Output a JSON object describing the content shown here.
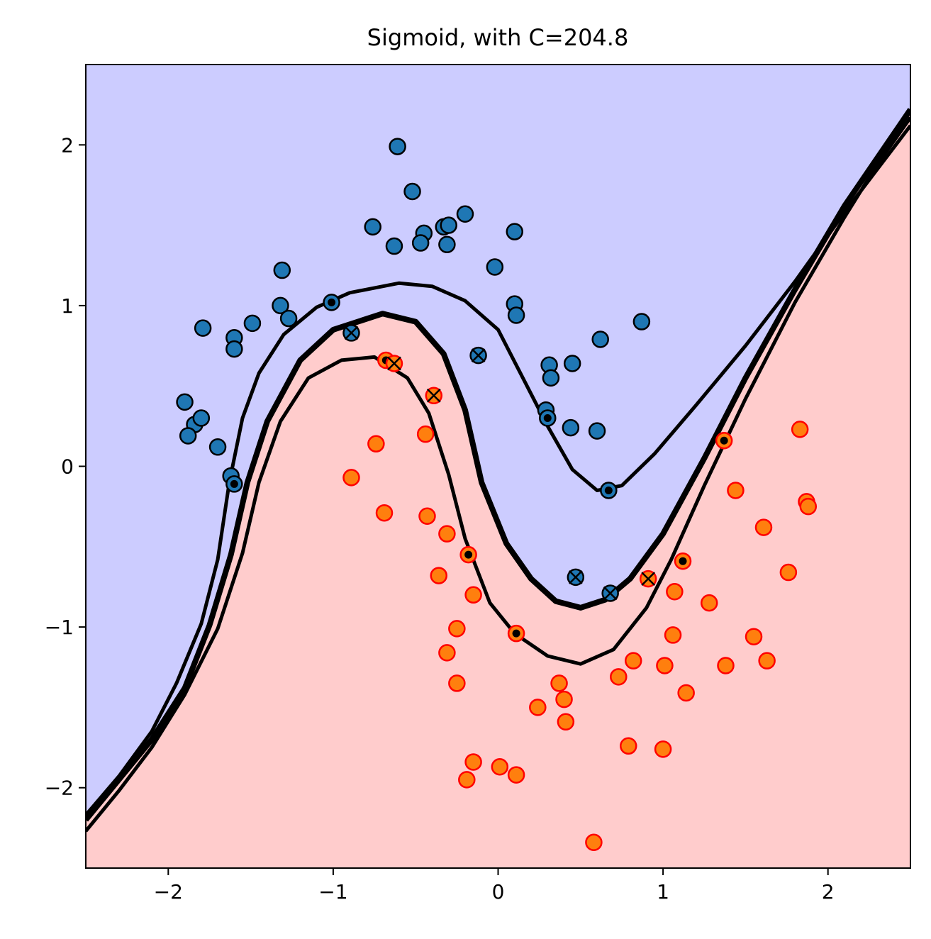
{
  "chart_data": {
    "type": "scatter",
    "title": "Sigmoid, with C=204.8",
    "xlabel": "",
    "ylabel": "",
    "xlim": [
      -2.5,
      2.5
    ],
    "ylim": [
      -2.5,
      2.5
    ],
    "xticks": [
      -2,
      -1,
      0,
      1,
      2
    ],
    "yticks": [
      -2,
      -1,
      0,
      1,
      2
    ],
    "xtick_labels": [
      "−2",
      "−1",
      "0",
      "1",
      "2"
    ],
    "ytick_labels": [
      "−2",
      "−1",
      "0",
      "1",
      "2"
    ],
    "grid": false,
    "colors": {
      "region_class0": "#ccccff",
      "region_class1": "#ffcccc",
      "class0_fill": "#1f77b4",
      "class0_edge": "#000000",
      "class1_fill": "#ff7f0e",
      "class1_edge": "#ff0000",
      "boundary": "#000000"
    },
    "series": [
      {
        "values": [
          [
            -0.61,
            1.99
          ],
          [
            -0.52,
            1.71
          ],
          [
            -0.76,
            1.49
          ],
          [
            -0.45,
            1.45
          ],
          [
            -0.33,
            1.49
          ],
          [
            -0.3,
            1.5
          ],
          [
            -0.2,
            1.57
          ],
          [
            -0.63,
            1.37
          ],
          [
            -0.47,
            1.39
          ],
          [
            -0.31,
            1.38
          ],
          [
            0.1,
            1.46
          ],
          [
            -0.02,
            1.24
          ],
          [
            -1.31,
            1.22
          ],
          [
            -1.01,
            1.02
          ],
          [
            -1.32,
            1.0
          ],
          [
            -1.27,
            0.92
          ],
          [
            -1.49,
            0.89
          ],
          [
            -1.79,
            0.86
          ],
          [
            -1.6,
            0.8
          ],
          [
            -1.6,
            0.73
          ],
          [
            0.1,
            1.01
          ],
          [
            0.11,
            0.94
          ],
          [
            -0.89,
            0.83
          ],
          [
            -0.12,
            0.69
          ],
          [
            0.62,
            0.79
          ],
          [
            0.87,
            0.9
          ],
          [
            0.31,
            0.63
          ],
          [
            0.32,
            0.55
          ],
          [
            0.45,
            0.64
          ],
          [
            -1.9,
            0.4
          ],
          [
            -1.84,
            0.26
          ],
          [
            -1.8,
            0.3
          ],
          [
            -1.88,
            0.19
          ],
          [
            -1.7,
            0.12
          ],
          [
            0.29,
            0.35
          ],
          [
            0.3,
            0.3
          ],
          [
            0.44,
            0.24
          ],
          [
            0.6,
            0.22
          ],
          [
            -1.62,
            -0.06
          ],
          [
            -1.6,
            -0.11
          ],
          [
            0.67,
            -0.15
          ],
          [
            0.47,
            -0.69
          ],
          [
            0.68,
            -0.79
          ]
        ],
        "support_vectors": [
          [
            -1.01,
            1.02
          ],
          [
            -1.6,
            -0.11
          ],
          [
            0.3,
            0.3
          ],
          [
            0.67,
            -0.15
          ]
        ],
        "misclassified": [
          [
            -0.89,
            0.83
          ],
          [
            -0.12,
            0.69
          ],
          [
            0.47,
            -0.69
          ],
          [
            0.68,
            -0.79
          ]
        ]
      },
      {
        "values": [
          [
            -0.68,
            0.66
          ],
          [
            -0.63,
            0.64
          ],
          [
            -0.39,
            0.44
          ],
          [
            -0.44,
            0.2
          ],
          [
            -0.74,
            0.14
          ],
          [
            -0.89,
            -0.07
          ],
          [
            -0.69,
            -0.29
          ],
          [
            -0.43,
            -0.31
          ],
          [
            -0.31,
            -0.42
          ],
          [
            -0.18,
            -0.55
          ],
          [
            -0.36,
            -0.68
          ],
          [
            -0.15,
            -0.8
          ],
          [
            -0.25,
            -1.01
          ],
          [
            -0.31,
            -1.16
          ],
          [
            -0.25,
            -1.35
          ],
          [
            0.11,
            -1.04
          ],
          [
            1.37,
            0.16
          ],
          [
            1.83,
            0.23
          ],
          [
            1.44,
            -0.15
          ],
          [
            1.87,
            -0.22
          ],
          [
            1.88,
            -0.25
          ],
          [
            1.61,
            -0.38
          ],
          [
            1.76,
            -0.66
          ],
          [
            1.12,
            -0.59
          ],
          [
            0.91,
            -0.7
          ],
          [
            1.07,
            -0.78
          ],
          [
            1.28,
            -0.85
          ],
          [
            1.06,
            -1.05
          ],
          [
            1.55,
            -1.06
          ],
          [
            1.63,
            -1.21
          ],
          [
            1.38,
            -1.24
          ],
          [
            1.01,
            -1.24
          ],
          [
            0.82,
            -1.21
          ],
          [
            0.73,
            -1.31
          ],
          [
            1.14,
            -1.41
          ],
          [
            0.37,
            -1.35
          ],
          [
            0.4,
            -1.45
          ],
          [
            0.24,
            -1.5
          ],
          [
            0.41,
            -1.59
          ],
          [
            0.79,
            -1.74
          ],
          [
            1.0,
            -1.76
          ],
          [
            -0.15,
            -1.84
          ],
          [
            0.01,
            -1.87
          ],
          [
            0.11,
            -1.92
          ],
          [
            -0.19,
            -1.95
          ],
          [
            0.58,
            -2.34
          ]
        ],
        "support_vectors": [
          [
            -0.68,
            0.66
          ],
          [
            -0.18,
            -0.55
          ],
          [
            0.11,
            -1.04
          ],
          [
            1.12,
            -0.59
          ],
          [
            1.37,
            0.16
          ]
        ],
        "misclassified": [
          [
            -0.63,
            0.64
          ],
          [
            -0.39,
            0.44
          ],
          [
            0.91,
            -0.7
          ]
        ]
      }
    ],
    "boundary_lines": [
      {
        "role": "margin-upper",
        "points": [
          [
            -2.5,
            -2.17
          ],
          [
            -2.3,
            -1.93
          ],
          [
            -2.1,
            -1.65
          ],
          [
            -1.95,
            -1.35
          ],
          [
            -1.8,
            -0.98
          ],
          [
            -1.7,
            -0.58
          ],
          [
            -1.63,
            -0.1
          ],
          [
            -1.55,
            0.3
          ],
          [
            -1.45,
            0.58
          ],
          [
            -1.3,
            0.82
          ],
          [
            -1.1,
            0.99
          ],
          [
            -0.9,
            1.08
          ],
          [
            -0.6,
            1.14
          ],
          [
            -0.4,
            1.12
          ],
          [
            -0.2,
            1.03
          ],
          [
            0.0,
            0.85
          ],
          [
            0.15,
            0.55
          ],
          [
            0.3,
            0.25
          ],
          [
            0.45,
            -0.02
          ],
          [
            0.6,
            -0.15
          ],
          [
            0.75,
            -0.12
          ],
          [
            0.95,
            0.08
          ],
          [
            1.2,
            0.38
          ],
          [
            1.5,
            0.75
          ],
          [
            1.8,
            1.15
          ],
          [
            2.1,
            1.58
          ],
          [
            2.3,
            1.85
          ],
          [
            2.5,
            2.12
          ]
        ]
      },
      {
        "role": "decision-boundary",
        "points": [
          [
            -2.5,
            -2.2
          ],
          [
            -2.3,
            -1.95
          ],
          [
            -2.1,
            -1.7
          ],
          [
            -1.9,
            -1.38
          ],
          [
            -1.75,
            -0.99
          ],
          [
            -1.62,
            -0.55
          ],
          [
            -1.52,
            -0.1
          ],
          [
            -1.4,
            0.28
          ],
          [
            -1.2,
            0.66
          ],
          [
            -1.0,
            0.85
          ],
          [
            -0.7,
            0.95
          ],
          [
            -0.5,
            0.9
          ],
          [
            -0.33,
            0.7
          ],
          [
            -0.2,
            0.35
          ],
          [
            -0.1,
            -0.1
          ],
          [
            0.05,
            -0.48
          ],
          [
            0.2,
            -0.7
          ],
          [
            0.35,
            -0.84
          ],
          [
            0.5,
            -0.88
          ],
          [
            0.65,
            -0.83
          ],
          [
            0.8,
            -0.7
          ],
          [
            1.0,
            -0.42
          ],
          [
            1.25,
            0.05
          ],
          [
            1.5,
            0.55
          ],
          [
            1.8,
            1.1
          ],
          [
            2.1,
            1.62
          ],
          [
            2.3,
            1.92
          ],
          [
            2.5,
            2.22
          ]
        ]
      },
      {
        "role": "margin-lower",
        "points": [
          [
            -2.5,
            -2.27
          ],
          [
            -2.3,
            -2.02
          ],
          [
            -2.1,
            -1.75
          ],
          [
            -1.9,
            -1.42
          ],
          [
            -1.7,
            -1.01
          ],
          [
            -1.55,
            -0.54
          ],
          [
            -1.45,
            -0.1
          ],
          [
            -1.32,
            0.28
          ],
          [
            -1.15,
            0.55
          ],
          [
            -0.95,
            0.66
          ],
          [
            -0.75,
            0.68
          ],
          [
            -0.55,
            0.55
          ],
          [
            -0.42,
            0.33
          ],
          [
            -0.3,
            -0.05
          ],
          [
            -0.2,
            -0.45
          ],
          [
            -0.05,
            -0.85
          ],
          [
            0.1,
            -1.04
          ],
          [
            0.3,
            -1.18
          ],
          [
            0.5,
            -1.23
          ],
          [
            0.7,
            -1.14
          ],
          [
            0.9,
            -0.88
          ],
          [
            1.05,
            -0.58
          ],
          [
            1.25,
            -0.12
          ],
          [
            1.5,
            0.42
          ],
          [
            1.8,
            1.02
          ],
          [
            2.1,
            1.55
          ],
          [
            2.3,
            1.88
          ],
          [
            2.5,
            2.17
          ]
        ]
      }
    ]
  }
}
